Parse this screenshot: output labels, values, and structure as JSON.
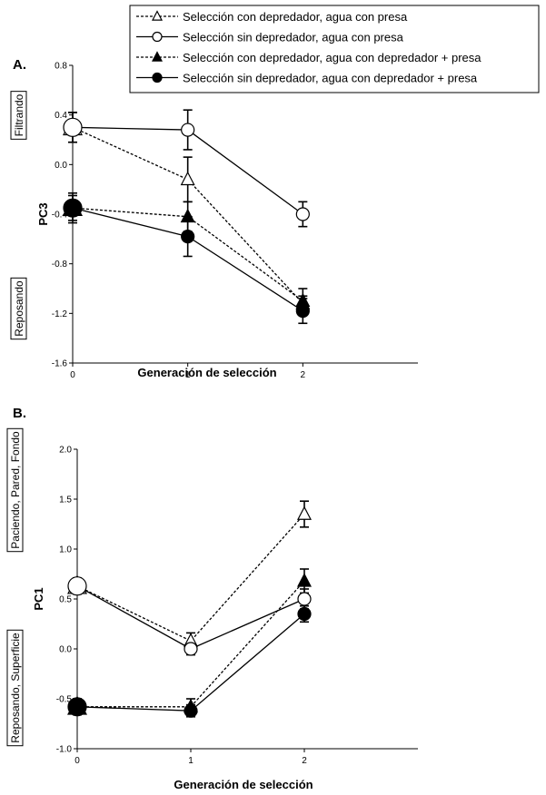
{
  "legend": [
    {
      "label": "Selección con depredador, agua con presa",
      "marker": "triangle",
      "fill": "#ffffff",
      "dash": true
    },
    {
      "label": "Selección sin depredador, agua con presa",
      "marker": "circle",
      "fill": "#ffffff",
      "dash": false
    },
    {
      "label": "Selección con depredador, agua con depredador + presa",
      "marker": "triangle",
      "fill": "#000000",
      "dash": true
    },
    {
      "label": "Selección sin depredador, agua con depredador + presa",
      "marker": "circle",
      "fill": "#000000",
      "dash": false
    }
  ],
  "chart_data": [
    {
      "type": "line",
      "panel": "A.",
      "xlabel": "Generación de selección",
      "ylabel": "PC3",
      "x": [
        0,
        1,
        2
      ],
      "xlim": [
        0,
        3
      ],
      "ylim": [
        -1.6,
        0.8
      ],
      "yticks": [
        "-1.6",
        "-1.2",
        "-0.8",
        "-0.4",
        "0.0",
        "0.4",
        "0.8"
      ],
      "yticks_values": [
        -1.6,
        -1.2,
        -0.8,
        -0.4,
        0.0,
        0.4,
        0.8
      ],
      "xticks": [
        "0",
        "1",
        "2"
      ],
      "top_label": "Filtrando",
      "bottom_label": "Reposando",
      "series": [
        {
          "name": "Selección con depredador, agua con presa",
          "values": [
            0.3,
            -0.12,
            -1.12
          ],
          "errors": [
            0.12,
            0.18,
            0.06
          ]
        },
        {
          "name": "Selección sin depredador, agua con presa",
          "values": [
            0.3,
            0.28,
            -0.4
          ],
          "errors": [
            0.12,
            0.16,
            0.1
          ]
        },
        {
          "name": "Selección con depredador, agua con depredador + presa",
          "values": [
            -0.35,
            -0.42,
            -1.1
          ],
          "errors": [
            0.1,
            0.12,
            0.1
          ]
        },
        {
          "name": "Selección sin depredador, agua con depredador + presa",
          "values": [
            -0.35,
            -0.58,
            -1.18
          ],
          "errors": [
            0.12,
            0.16,
            0.1
          ]
        }
      ]
    },
    {
      "type": "line",
      "panel": "B.",
      "xlabel": "Generación de selección",
      "ylabel": "PC1",
      "x": [
        0,
        1,
        2
      ],
      "xlim": [
        0,
        3
      ],
      "ylim": [
        -1.0,
        2.0
      ],
      "yticks": [
        "-1.0",
        "-0.5",
        "0.0",
        "0.5",
        "1.0",
        "1.5",
        "2.0"
      ],
      "yticks_values": [
        -1.0,
        -0.5,
        0.0,
        0.5,
        1.0,
        1.5,
        2.0
      ],
      "xticks": [
        "0",
        "1",
        "2"
      ],
      "top_label": "Paciendo, Pared, Fondo",
      "bottom_label": "Reposando, Superficie",
      "series": [
        {
          "name": "Selección con depredador, agua con presa",
          "values": [
            0.63,
            0.08,
            1.35
          ],
          "errors": [
            0.06,
            0.08,
            0.13
          ]
        },
        {
          "name": "Selección sin depredador, agua con presa",
          "values": [
            0.63,
            0.0,
            0.5
          ],
          "errors": [
            0.08,
            0.06,
            0.1
          ]
        },
        {
          "name": "Selección con depredador, agua con depredador + presa",
          "values": [
            -0.58,
            -0.58,
            0.68
          ],
          "errors": [
            0.08,
            0.08,
            0.12
          ]
        },
        {
          "name": "Selección sin depredador, agua con depredador + presa",
          "values": [
            -0.58,
            -0.62,
            0.35
          ],
          "errors": [
            0.08,
            0.06,
            0.08
          ]
        }
      ]
    }
  ]
}
